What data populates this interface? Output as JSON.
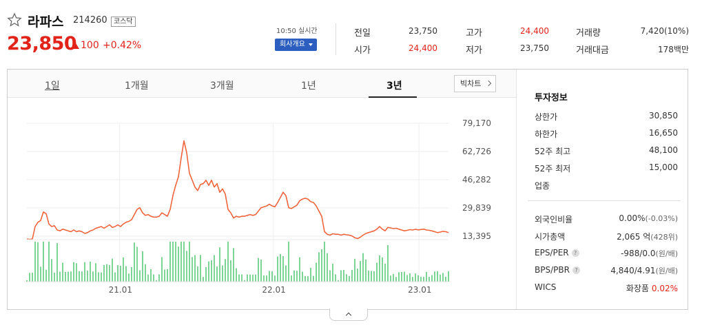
{
  "stock": {
    "name": "라파스",
    "code": "214260",
    "market": "코스닥",
    "price": "23,850",
    "change": "100",
    "change_pct": "+0.42%",
    "up_color": "#e2231a"
  },
  "realtime": {
    "time_label": "10:50 실시간",
    "company_button": "회사개요"
  },
  "quote": {
    "prev_close_label": "전일",
    "prev_close": "23,750",
    "high_label": "고가",
    "high": "24,400",
    "volume_label": "거래량",
    "volume": "7,420(10%)",
    "open_label": "시가",
    "open": "24,400",
    "low_label": "저가",
    "low": "23,750",
    "amount_label": "거래대금",
    "amount": "178백만"
  },
  "tabs": [
    "1일",
    "1개월",
    "3개월",
    "1년",
    "3년"
  ],
  "active_tab": "3년",
  "big_chart_button": "빅차트",
  "chart_data": {
    "type": "line",
    "range": "3년",
    "line_color": "#f0643c",
    "y_ticks": [
      79170,
      62726,
      46282,
      29839,
      13395
    ],
    "ylim": [
      13395,
      79170
    ],
    "x_tick_labels": [
      "21.01",
      "22.01",
      "23.01"
    ],
    "x": [
      0,
      4,
      8,
      12,
      16,
      20,
      24,
      28,
      32,
      36,
      40,
      44,
      48,
      52,
      56,
      60,
      64,
      68,
      72,
      76,
      80,
      84,
      88,
      92,
      96,
      100,
      104,
      108,
      112,
      116,
      120,
      124,
      128,
      132,
      136,
      140,
      144,
      148,
      152,
      156,
      160,
      164,
      168,
      172,
      176,
      180,
      184,
      188,
      192,
      196,
      200,
      204,
      208,
      212,
      216,
      220,
      224,
      228,
      232,
      236,
      240,
      244,
      248,
      252,
      256,
      260,
      264,
      268,
      272,
      276,
      280,
      284,
      288,
      292,
      296,
      300,
      304,
      308,
      312,
      316,
      320,
      324,
      328,
      332,
      336,
      340,
      344,
      348,
      352,
      356,
      360,
      364,
      368,
      372,
      376,
      380,
      384,
      388,
      392,
      396,
      400,
      404,
      408,
      412,
      416,
      420,
      424,
      428,
      432,
      436,
      440,
      444,
      448,
      452,
      456,
      460,
      464,
      468,
      472,
      476,
      480,
      484,
      488,
      492,
      496,
      500,
      504,
      508,
      512,
      516,
      520,
      524,
      528,
      532,
      536,
      540,
      544,
      548,
      552,
      556,
      560,
      564,
      568,
      572,
      576,
      580,
      584,
      588,
      592,
      596,
      600,
      604,
      608,
      612
    ],
    "values": [
      11800,
      11500,
      11800,
      19000,
      21500,
      22500,
      27500,
      26500,
      20500,
      19000,
      19500,
      17000,
      16500,
      17500,
      17000,
      16500,
      16000,
      17000,
      16000,
      16500,
      16000,
      15000,
      15500,
      16500,
      17000,
      18000,
      18500,
      19000,
      18000,
      19000,
      20000,
      18500,
      19000,
      20000,
      19000,
      20500,
      21500,
      22000,
      23000,
      26000,
      29000,
      30000,
      27000,
      25500,
      26000,
      25000,
      24500,
      24500,
      25000,
      27000,
      26000,
      25000,
      29000,
      37000,
      43000,
      48000,
      59000,
      69000,
      62000,
      50000,
      46000,
      42000,
      40000,
      43500,
      44000,
      46000,
      43000,
      46000,
      42000,
      44000,
      39000,
      41000,
      38000,
      29000,
      27000,
      24000,
      25000,
      24500,
      25000,
      25000,
      25500,
      26000,
      25500,
      26000,
      28000,
      30000,
      30500,
      31000,
      32000,
      31000,
      30500,
      33000,
      36000,
      39000,
      37000,
      30000,
      29500,
      30500,
      31500,
      34000,
      35000,
      35500,
      35000,
      33500,
      33000,
      31000,
      28000,
      25000,
      16000,
      14500,
      14000,
      14800,
      14500,
      14500,
      14000,
      14500,
      14200,
      14000,
      13500,
      12500,
      12000,
      12800,
      14000,
      15000,
      15500,
      16000,
      16500,
      17500,
      19000,
      17500,
      16500,
      18500,
      18200,
      17800,
      18000,
      17500,
      17000,
      16500,
      16800,
      17200,
      17000,
      17400,
      17100,
      17300,
      17500,
      17000,
      16800,
      16500,
      16000,
      15500,
      15800,
      16200,
      16000,
      15500
    ]
  },
  "sidebar": {
    "title": "투자정보",
    "upper_limit_label": "상한가",
    "upper_limit": "30,850",
    "lower_limit_label": "하한가",
    "lower_limit": "16,650",
    "high52_label": "52주 최고",
    "high52": "48,100",
    "low52_label": "52주 최저",
    "low52": "15,000",
    "industry_label": "업종",
    "foreign_label": "외국인비율",
    "foreign": "0.00%",
    "foreign_sub": "(-0.03%)",
    "mcap_label": "시가총액",
    "mcap": "2,065 억",
    "mcap_sub": "(428위)",
    "eps_label": "EPS/PER",
    "eps": "-988/0.0",
    "eps_sub": "(원/배)",
    "bps_label": "BPS/PBR",
    "bps": "4,840/4.91",
    "bps_sub": "(원/배)",
    "wics_label": "WICS",
    "wics": "화장품",
    "wics_pct": "0.02%"
  }
}
